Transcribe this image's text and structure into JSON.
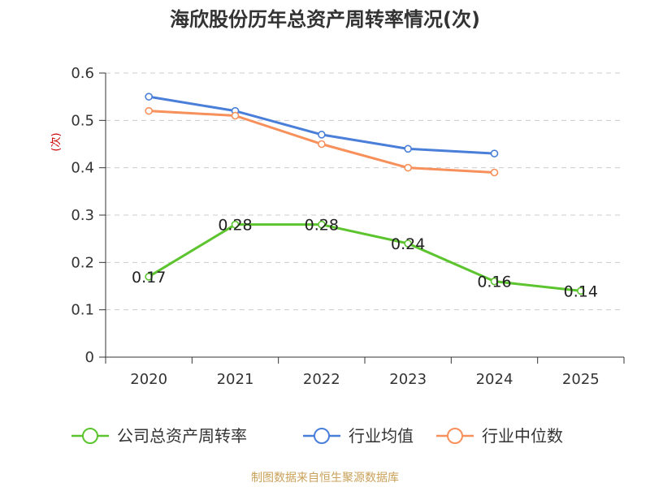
{
  "title": "海欣股份历年总资产周转率情况(次)",
  "footer": "制图数据来自恒生聚源数据库",
  "colors": {
    "company": "#5cc42e",
    "industry_avg": "#4a7fd9",
    "industry_median": "#f7905a",
    "grid": "#cccccc",
    "axis": "#333333"
  },
  "chart_data": {
    "type": "line",
    "title": "海欣股份历年总资产周转率情况(次)",
    "xlabel": "",
    "ylabel": "(次)",
    "categories": [
      "2020",
      "2021",
      "2022",
      "2023",
      "2024",
      "2025"
    ],
    "ylim": [
      0,
      0.6
    ],
    "yticks": [
      0,
      0.1,
      0.2,
      0.3,
      0.4,
      0.5,
      0.6
    ],
    "ytick_labels": [
      "0",
      "0.1",
      "0.2",
      "0.3",
      "0.4",
      "0.5",
      "0.6"
    ],
    "grid": true,
    "legend_position": "bottom",
    "series": [
      {
        "name": "公司总资产周转率",
        "key": "company",
        "values": [
          0.17,
          0.28,
          0.28,
          0.24,
          0.16,
          0.14
        ],
        "data_labels": [
          "0.17",
          "0.28",
          "0.28",
          "0.24",
          "0.16",
          "0.14"
        ]
      },
      {
        "name": "行业均值",
        "key": "industry_avg",
        "values": [
          0.55,
          0.52,
          0.47,
          0.44,
          0.43,
          null
        ]
      },
      {
        "name": "行业中位数",
        "key": "industry_median",
        "values": [
          0.52,
          0.51,
          0.45,
          0.4,
          0.39,
          null
        ]
      }
    ]
  }
}
